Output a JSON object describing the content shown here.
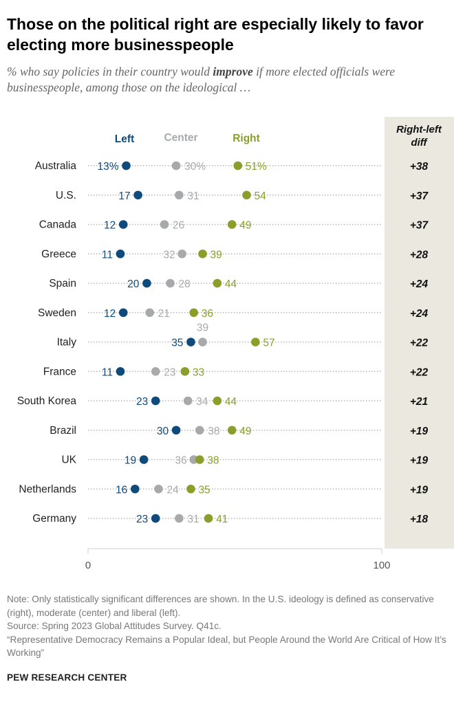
{
  "title": "Those on the political right are especially likely to favor electing more businesspeople",
  "subtitle": {
    "before": "% who say policies in their country would ",
    "emphasis": "improve",
    "after": " if more elected officials were businesspeople, among those on the ideological …"
  },
  "legend": {
    "left": "Left",
    "center": "Center",
    "right": "Right"
  },
  "diff_header": [
    "Right-left",
    "diff"
  ],
  "colors": {
    "left": "#0f4a7d",
    "center": "#a7a9ab",
    "right": "#8c9d2a",
    "diff_bg": "#ebe8e0",
    "dotline": "#b0b0b0"
  },
  "chart_data": {
    "type": "scatter",
    "xlim": [
      0,
      100
    ],
    "x_ticks": [
      "0",
      "100"
    ],
    "categories": [
      "Australia",
      "U.S.",
      "Canada",
      "Greece",
      "Spain",
      "Sweden",
      "Italy",
      "France",
      "South Korea",
      "Brazil",
      "UK",
      "Netherlands",
      "Germany"
    ],
    "series": [
      {
        "name": "Left",
        "values": [
          13,
          17,
          12,
          11,
          20,
          12,
          35,
          11,
          23,
          30,
          19,
          16,
          23
        ]
      },
      {
        "name": "Center",
        "values": [
          30,
          31,
          26,
          32,
          28,
          21,
          39,
          23,
          34,
          38,
          36,
          24,
          31
        ]
      },
      {
        "name": "Right",
        "values": [
          51,
          54,
          49,
          39,
          44,
          36,
          57,
          33,
          44,
          49,
          38,
          35,
          41
        ]
      }
    ],
    "right_left_diff": [
      "+38",
      "+37",
      "+37",
      "+28",
      "+24",
      "+24",
      "+22",
      "+22",
      "+21",
      "+19",
      "+19",
      "+19",
      "+18"
    ],
    "first_row_percent_sign": true
  },
  "footer": {
    "note": "Note: Only statistically significant differences are shown. In the U.S. ideology is defined as conservative (right), moderate (center) and liberal (left).",
    "source": "Source: Spring 2023 Global Attitudes Survey. Q41c.",
    "report": "“Representative Democracy Remains a Popular Ideal, but People Around the World Are Critical of How It’s Working”",
    "brand": "PEW RESEARCH CENTER"
  }
}
